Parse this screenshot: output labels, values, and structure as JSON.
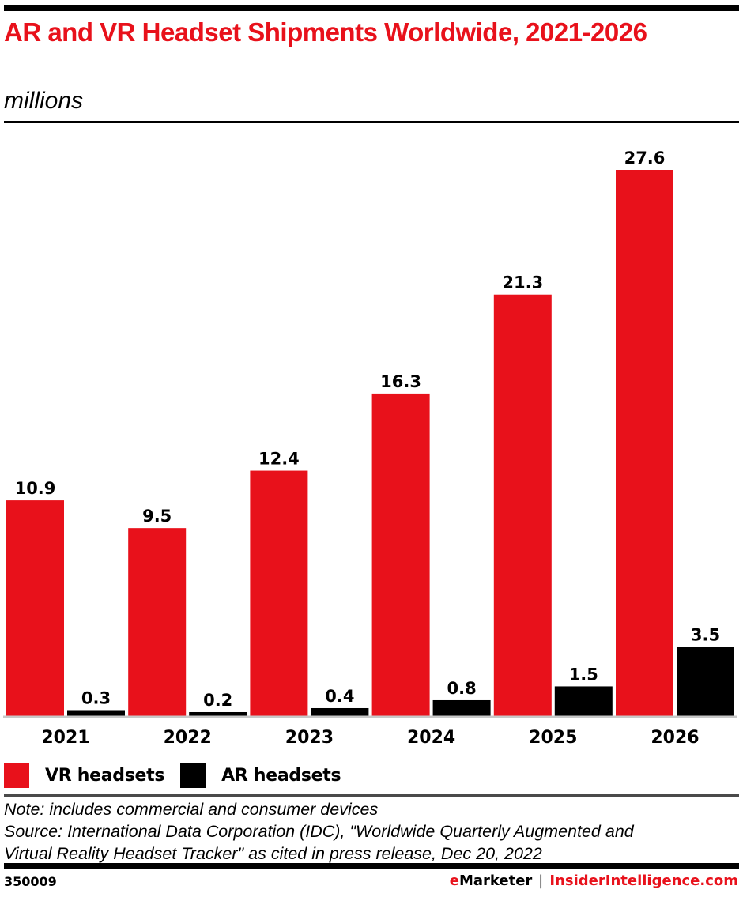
{
  "header": {
    "title": "AR and VR Headset Shipments Worldwide, 2021-2026",
    "subtitle": "millions"
  },
  "colors": {
    "vr": "#e8111b",
    "ar": "#000000",
    "axis": "#c8c8c8",
    "accent": "#e8111b"
  },
  "chart_data": {
    "type": "bar",
    "title": "AR and VR Headset Shipments Worldwide, 2021-2026",
    "subtitle": "millions",
    "xlabel": "",
    "ylabel": "",
    "ylim": [
      0,
      27.6
    ],
    "grid": false,
    "legend_position": "bottom-left",
    "categories": [
      "2021",
      "2022",
      "2023",
      "2024",
      "2025",
      "2026"
    ],
    "series": [
      {
        "name": "VR headsets",
        "color": "#e8111b",
        "values": [
          10.9,
          9.5,
          12.4,
          16.3,
          21.3,
          27.6
        ],
        "labels": [
          "10.9",
          "9.5",
          "12.4",
          "16.3",
          "21.3",
          "27.6"
        ]
      },
      {
        "name": "AR headsets",
        "color": "#000000",
        "values": [
          0.3,
          0.2,
          0.4,
          0.8,
          1.5,
          3.5
        ],
        "labels": [
          "0.3",
          "0.2",
          "0.4",
          "0.8",
          "1.5",
          "3.5"
        ]
      }
    ]
  },
  "legend": {
    "items": [
      {
        "label": "VR headsets"
      },
      {
        "label": "AR headsets"
      }
    ]
  },
  "footer": {
    "note": "Note: includes commercial and consumer devices",
    "source_line1": "Source: International Data Corporation (IDC), \"Worldwide Quarterly Augmented and",
    "source_line2": "Virtual Reality Headset Tracker\" as cited in press release, Dec 20, 2022",
    "chart_id": "350009",
    "brand_e": "e",
    "brand_marketer": "Marketer",
    "brand_separator": "|",
    "brand_site": "InsiderIntelligence.com"
  }
}
